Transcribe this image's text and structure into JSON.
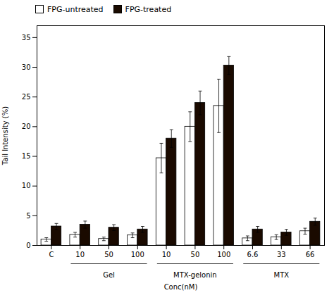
{
  "chart_data": {
    "type": "bar",
    "categories": [
      "C",
      "10",
      "50",
      "100",
      "10",
      "50",
      "100",
      "6.6",
      "33",
      "66"
    ],
    "series": [
      {
        "name": "FPG-untreated",
        "color": "#ffffff",
        "values": [
          1.0,
          1.8,
          1.1,
          1.7,
          14.7,
          20.0,
          23.5,
          1.2,
          1.4,
          2.4
        ],
        "errors": [
          0.3,
          0.4,
          0.3,
          0.4,
          2.5,
          2.5,
          4.5,
          0.4,
          0.4,
          0.5
        ]
      },
      {
        "name": "FPG-treated",
        "color": "#1a0a00",
        "values": [
          3.2,
          3.5,
          3.0,
          2.7,
          18.0,
          24.0,
          30.3,
          2.7,
          2.2,
          4.0
        ],
        "errors": [
          0.5,
          0.6,
          0.5,
          0.5,
          1.5,
          2.0,
          1.5,
          0.5,
          0.5,
          0.6
        ]
      }
    ],
    "xlabel": "Conc(nM)",
    "ylabel": "Tail Intensity (%)",
    "ylim": [
      0,
      37
    ],
    "yticks": [
      0,
      5,
      10,
      15,
      20,
      25,
      30,
      35
    ],
    "grid": false,
    "legend": "upper left",
    "groups": [
      {
        "label": "Gel",
        "start": 1,
        "end": 3
      },
      {
        "label": "MTX-gelonin",
        "start": 4,
        "end": 6
      },
      {
        "label": "MTX",
        "start": 7,
        "end": 9
      }
    ]
  }
}
